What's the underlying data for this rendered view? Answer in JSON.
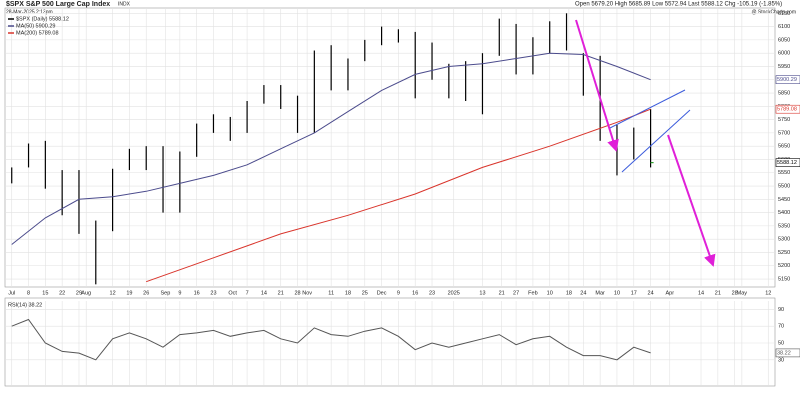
{
  "chart_data": [
    {
      "type": "stock",
      "title": "$SPX S&P 500 Large Cap Index",
      "exchange": "INDX",
      "subtitle": "28-Mar-2025 2:13pm",
      "quote": "Open 5679.20 High 5685.89 Low 5572.94 Last 5588.12 Chg -105.19 (-1.85%)",
      "credit": "@ StockCharts.com",
      "xlim": [
        -0.4,
        45.4
      ],
      "xticks": [
        {
          "value": 0,
          "label": "Jul"
        },
        {
          "value": 1,
          "label": "8"
        },
        {
          "value": 2,
          "label": "15"
        },
        {
          "value": 3,
          "label": "22"
        },
        {
          "value": 4,
          "label": "29"
        },
        {
          "value": 4.43,
          "label": "Aug"
        },
        {
          "value": 6,
          "label": "12"
        },
        {
          "value": 7,
          "label": "19"
        },
        {
          "value": 8,
          "label": "26"
        },
        {
          "value": 9.14,
          "label": "Sep"
        },
        {
          "value": 10,
          "label": "9"
        },
        {
          "value": 11,
          "label": "16"
        },
        {
          "value": 12,
          "label": "23"
        },
        {
          "value": 13.14,
          "label": "Oct"
        },
        {
          "value": 14,
          "label": "7"
        },
        {
          "value": 15,
          "label": "14"
        },
        {
          "value": 16,
          "label": "21"
        },
        {
          "value": 17,
          "label": "28"
        },
        {
          "value": 17.57,
          "label": "Nov"
        },
        {
          "value": 19,
          "label": "11"
        },
        {
          "value": 20,
          "label": "18"
        },
        {
          "value": 21,
          "label": "25"
        },
        {
          "value": 22,
          "label": "Dec"
        },
        {
          "value": 23,
          "label": "9"
        },
        {
          "value": 24,
          "label": "16"
        },
        {
          "value": 25,
          "label": "23"
        },
        {
          "value": 26.29,
          "label": "2025"
        },
        {
          "value": 28,
          "label": "13"
        },
        {
          "value": 29.14,
          "label": "21"
        },
        {
          "value": 30,
          "label": "27"
        },
        {
          "value": 31,
          "label": "Feb"
        },
        {
          "value": 32,
          "label": "10"
        },
        {
          "value": 33.14,
          "label": "18"
        },
        {
          "value": 34,
          "label": "24"
        },
        {
          "value": 35,
          "label": "Mar"
        },
        {
          "value": 36,
          "label": "10"
        },
        {
          "value": 37,
          "label": "17"
        },
        {
          "value": 38,
          "label": "24"
        },
        {
          "value": 39.14,
          "label": "Apr"
        },
        {
          "value": 41,
          "label": "14"
        },
        {
          "value": 42,
          "label": "21"
        },
        {
          "value": 43,
          "label": "28"
        },
        {
          "value": 43.43,
          "label": "May"
        },
        {
          "value": 45,
          "label": "12"
        }
      ],
      "ylim": [
        5120,
        6170
      ],
      "yticks": [
        5150,
        5200,
        5250,
        5300,
        5350,
        5400,
        5450,
        5500,
        5550,
        5600,
        5650,
        5700,
        5750,
        5800,
        5850,
        5900,
        5950,
        6000,
        6050,
        6100,
        6150
      ],
      "grid": true,
      "series": [
        {
          "name": "$SPX (Daily) 5588.12",
          "color": "#000000",
          "x": [
            0,
            1,
            2,
            3,
            4,
            5,
            6,
            7,
            8,
            9,
            10,
            11,
            12,
            13,
            14,
            15,
            16,
            17,
            18,
            19,
            20,
            21,
            22,
            23,
            24,
            25,
            26,
            27,
            28,
            29,
            30,
            31,
            32,
            33,
            34,
            35,
            36,
            37,
            38
          ],
          "high": [
            5570,
            5660,
            5670,
            5560,
            5560,
            5370,
            5565,
            5640,
            5650,
            5650,
            5630,
            5735,
            5770,
            5760,
            5820,
            5880,
            5880,
            5840,
            6010,
            6030,
            5980,
            6050,
            6100,
            6090,
            6080,
            6040,
            5960,
            5970,
            6000,
            6130,
            6110,
            6060,
            6120,
            6150,
            6000,
            5990,
            5730,
            5720,
            5790
          ],
          "low": [
            5510,
            5570,
            5490,
            5390,
            5320,
            5130,
            5330,
            5560,
            5560,
            5400,
            5400,
            5610,
            5700,
            5670,
            5700,
            5810,
            5790,
            5700,
            5700,
            5860,
            5860,
            5970,
            6030,
            6040,
            5830,
            5900,
            5830,
            5820,
            5770,
            5990,
            5920,
            5920,
            6000,
            6010,
            5840,
            5670,
            5540,
            5600,
            5570
          ],
          "last": 5588.12
        },
        {
          "name": "MA(50) 5900.29",
          "color": "#4b4b8c",
          "x": [
            0,
            2,
            4,
            6,
            8,
            10,
            12,
            14,
            16,
            18,
            20,
            22,
            24,
            26,
            28,
            30,
            32,
            34,
            36,
            38
          ],
          "values": [
            5280,
            5380,
            5450,
            5460,
            5480,
            5510,
            5540,
            5580,
            5640,
            5700,
            5780,
            5860,
            5920,
            5950,
            5960,
            5980,
            6000,
            5995,
            5950,
            5900.29
          ]
        },
        {
          "name": "MA(200) 5789.08",
          "color": "#d9342b",
          "x": [
            8,
            12,
            16,
            20,
            24,
            28,
            32,
            36,
            38
          ],
          "values": [
            5140,
            5230,
            5320,
            5390,
            5470,
            5570,
            5650,
            5740,
            5789.08
          ]
        }
      ]
    },
    {
      "type": "line",
      "xlim": [
        -0.4,
        45.4
      ],
      "ylim": [
        0,
        100
      ],
      "yticks": [
        30,
        50,
        70,
        90
      ],
      "grid": true,
      "series": [
        {
          "name": "RSI(14) 38.22",
          "color": "#555555",
          "x": [
            0,
            1,
            2,
            3,
            4,
            5,
            6,
            7,
            8,
            9,
            10,
            11,
            12,
            13,
            14,
            15,
            16,
            17,
            18,
            19,
            20,
            21,
            22,
            23,
            24,
            25,
            26,
            27,
            28,
            29,
            30,
            31,
            32,
            33,
            34,
            35,
            36,
            37,
            38
          ],
          "values": [
            70,
            78,
            50,
            40,
            38,
            30,
            55,
            62,
            55,
            45,
            60,
            62,
            65,
            58,
            62,
            65,
            55,
            50,
            68,
            60,
            58,
            64,
            68,
            58,
            42,
            50,
            45,
            50,
            55,
            60,
            48,
            55,
            58,
            45,
            35,
            35,
            30,
            45,
            38.22
          ]
        }
      ]
    }
  ]
}
